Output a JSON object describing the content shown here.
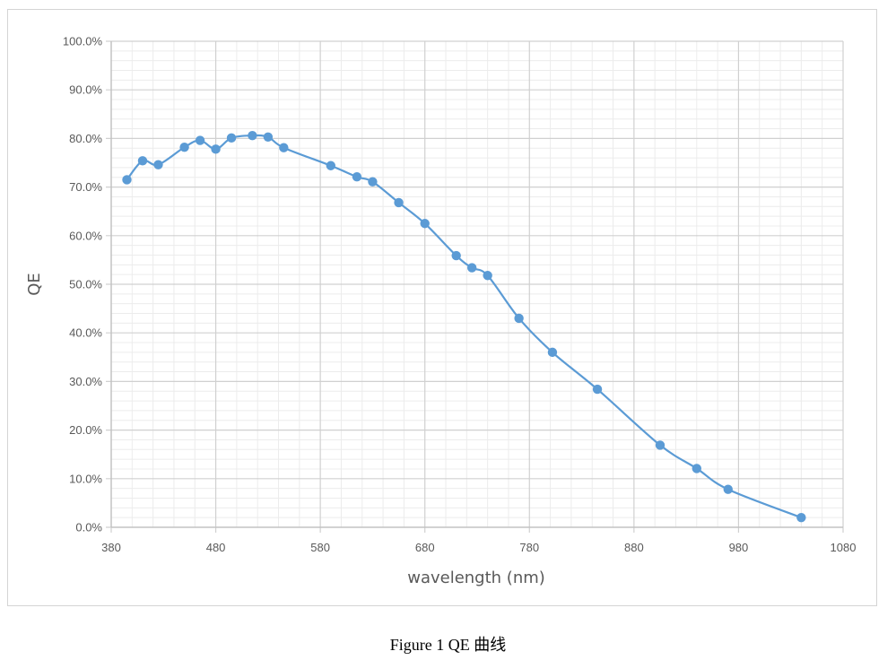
{
  "caption": "Figure 1 QE 曲线",
  "chart_data": {
    "type": "line",
    "title": "",
    "xlabel": "wavelength (nm)",
    "ylabel": "QE",
    "xlim": [
      380,
      1080
    ],
    "ylim": [
      0,
      1.0
    ],
    "x_ticks": [
      380,
      480,
      580,
      680,
      780,
      880,
      980,
      1080
    ],
    "x_tick_labels": [
      "380",
      "480",
      "580",
      "680",
      "780",
      "880",
      "980",
      "1080"
    ],
    "y_ticks": [
      0,
      0.1,
      0.2,
      0.3,
      0.4,
      0.5,
      0.6,
      0.7,
      0.8,
      0.9,
      1.0
    ],
    "y_tick_labels": [
      "0.0%",
      "10.0%",
      "20.0%",
      "30.0%",
      "40.0%",
      "50.0%",
      "60.0%",
      "70.0%",
      "80.0%",
      "90.0%",
      "100.0%"
    ],
    "x_minor_step": 20,
    "y_minor_step": 0.02,
    "grid": true,
    "legend": false,
    "marker": "circle",
    "series_color": "#5b9bd5",
    "series": [
      {
        "x": [
          395,
          410,
          425,
          450,
          465,
          480,
          495,
          515,
          530,
          545,
          590,
          615,
          630,
          655,
          680,
          710,
          725,
          740,
          770,
          802,
          845,
          905,
          940,
          970,
          1040
        ],
        "values": [
          0.715,
          0.754,
          0.746,
          0.782,
          0.796,
          0.778,
          0.801,
          0.806,
          0.803,
          0.781,
          0.744,
          0.721,
          0.711,
          0.668,
          0.625,
          0.559,
          0.534,
          0.518,
          0.43,
          0.36,
          0.284,
          0.169,
          0.121,
          0.078,
          0.02
        ]
      }
    ]
  }
}
